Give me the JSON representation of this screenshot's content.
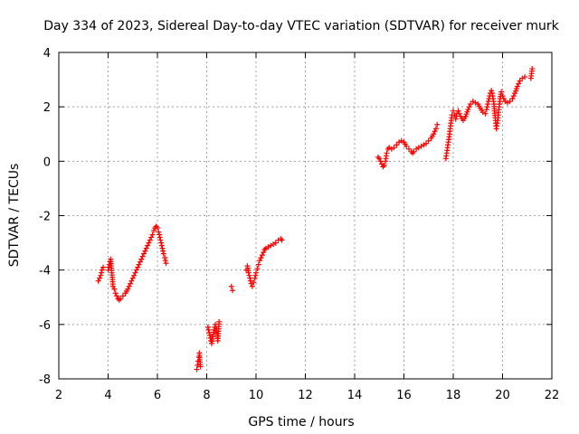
{
  "chart_data": {
    "type": "scatter",
    "title": "Day 334 of 2023, Sidereal Day-to-day VTEC variation (SDTVAR) for receiver murk",
    "xlabel": "GPS time / hours",
    "ylabel": "SDTVAR / TECUs",
    "xlim": [
      2,
      22
    ],
    "ylim": [
      -8,
      4
    ],
    "xticks": [
      2,
      4,
      6,
      8,
      10,
      12,
      14,
      16,
      18,
      20,
      22
    ],
    "yticks": [
      -8,
      -6,
      -4,
      -2,
      0,
      2,
      4
    ],
    "grid": true,
    "marker": "+",
    "color": "#ff0000",
    "series": [
      {
        "name": "SDTVAR",
        "segments": [
          [
            [
              3.6,
              -4.4
            ],
            [
              3.65,
              -4.3
            ],
            [
              3.7,
              -4.2
            ],
            [
              3.75,
              -4.0
            ],
            [
              3.8,
              -3.9
            ]
          ],
          [
            [
              4.0,
              -4.0
            ],
            [
              4.05,
              -3.8
            ],
            [
              4.1,
              -3.6
            ],
            [
              4.15,
              -4.1
            ],
            [
              4.2,
              -4.6
            ],
            [
              4.25,
              -4.7
            ],
            [
              4.3,
              -4.85
            ],
            [
              4.35,
              -4.95
            ],
            [
              4.4,
              -5.05
            ],
            [
              4.45,
              -5.1
            ],
            [
              4.5,
              -5.05
            ],
            [
              4.6,
              -4.95
            ],
            [
              4.7,
              -4.85
            ],
            [
              4.8,
              -4.7
            ],
            [
              4.9,
              -4.5
            ],
            [
              5.0,
              -4.3
            ],
            [
              5.1,
              -4.1
            ],
            [
              5.2,
              -3.9
            ],
            [
              5.3,
              -3.7
            ],
            [
              5.4,
              -3.5
            ],
            [
              5.5,
              -3.3
            ],
            [
              5.6,
              -3.1
            ],
            [
              5.7,
              -2.9
            ],
            [
              5.75,
              -2.8
            ],
            [
              5.8,
              -2.7
            ],
            [
              5.85,
              -2.55
            ],
            [
              5.9,
              -2.45
            ],
            [
              5.95,
              -2.4
            ],
            [
              6.0,
              -2.45
            ],
            [
              6.05,
              -2.6
            ],
            [
              6.1,
              -2.8
            ],
            [
              6.15,
              -3.0
            ],
            [
              6.2,
              -3.2
            ],
            [
              6.25,
              -3.4
            ],
            [
              6.3,
              -3.55
            ],
            [
              6.35,
              -3.75
            ]
          ],
          [
            [
              7.6,
              -7.65
            ],
            [
              7.62,
              -7.5
            ],
            [
              7.65,
              -7.35
            ],
            [
              7.68,
              -7.2
            ],
            [
              7.7,
              -7.05
            ],
            [
              7.72,
              -7.3
            ],
            [
              7.75,
              -7.55
            ]
          ],
          [
            [
              8.05,
              -6.1
            ],
            [
              8.1,
              -6.3
            ],
            [
              8.15,
              -6.5
            ],
            [
              8.2,
              -6.7
            ],
            [
              8.25,
              -6.45
            ],
            [
              8.3,
              -6.2
            ],
            [
              8.35,
              -6.0
            ],
            [
              8.4,
              -6.15
            ],
            [
              8.45,
              -6.6
            ],
            [
              8.5,
              -5.9
            ]
          ],
          [
            [
              9.0,
              -4.6
            ],
            [
              9.05,
              -4.75
            ]
          ],
          [
            [
              9.6,
              -4.0
            ],
            [
              9.65,
              -3.85
            ],
            [
              9.7,
              -4.1
            ],
            [
              9.75,
              -4.3
            ],
            [
              9.8,
              -4.5
            ],
            [
              9.85,
              -4.6
            ],
            [
              9.9,
              -4.45
            ],
            [
              9.95,
              -4.3
            ],
            [
              10.0,
              -4.1
            ],
            [
              10.05,
              -3.95
            ],
            [
              10.1,
              -3.8
            ],
            [
              10.15,
              -3.65
            ],
            [
              10.2,
              -3.55
            ],
            [
              10.25,
              -3.45
            ],
            [
              10.3,
              -3.35
            ],
            [
              10.35,
              -3.25
            ],
            [
              10.4,
              -3.2
            ],
            [
              10.5,
              -3.15
            ],
            [
              10.6,
              -3.1
            ],
            [
              10.7,
              -3.05
            ],
            [
              10.8,
              -3.0
            ],
            [
              10.9,
              -2.9
            ],
            [
              11.0,
              -2.85
            ],
            [
              11.05,
              -2.9
            ]
          ],
          [
            [
              14.95,
              0.15
            ],
            [
              15.0,
              0.1
            ],
            [
              15.05,
              0.0
            ],
            [
              15.1,
              -0.1
            ],
            [
              15.15,
              -0.2
            ],
            [
              15.2,
              -0.15
            ],
            [
              15.25,
              0.0
            ],
            [
              15.3,
              0.3
            ],
            [
              15.35,
              0.45
            ],
            [
              15.4,
              0.5
            ],
            [
              15.5,
              0.45
            ],
            [
              15.6,
              0.5
            ],
            [
              15.7,
              0.6
            ],
            [
              15.8,
              0.7
            ],
            [
              15.9,
              0.75
            ],
            [
              16.0,
              0.7
            ],
            [
              16.1,
              0.55
            ],
            [
              16.2,
              0.45
            ],
            [
              16.3,
              0.35
            ],
            [
              16.35,
              0.3
            ],
            [
              16.4,
              0.35
            ],
            [
              16.5,
              0.45
            ],
            [
              16.6,
              0.5
            ],
            [
              16.7,
              0.55
            ],
            [
              16.8,
              0.6
            ],
            [
              16.9,
              0.65
            ],
            [
              17.0,
              0.75
            ],
            [
              17.1,
              0.85
            ],
            [
              17.2,
              1.0
            ],
            [
              17.3,
              1.2
            ],
            [
              17.35,
              1.35
            ]
          ],
          [
            [
              17.7,
              0.1
            ],
            [
              17.75,
              0.4
            ],
            [
              17.8,
              0.7
            ],
            [
              17.85,
              1.0
            ],
            [
              17.9,
              1.4
            ],
            [
              17.95,
              1.7
            ],
            [
              18.0,
              1.85
            ],
            [
              18.05,
              1.7
            ],
            [
              18.1,
              1.55
            ],
            [
              18.15,
              1.75
            ],
            [
              18.2,
              1.85
            ],
            [
              18.3,
              1.65
            ],
            [
              18.4,
              1.5
            ],
            [
              18.5,
              1.65
            ],
            [
              18.6,
              1.9
            ],
            [
              18.7,
              2.1
            ],
            [
              18.8,
              2.2
            ],
            [
              18.9,
              2.15
            ],
            [
              19.0,
              2.1
            ],
            [
              19.1,
              1.95
            ],
            [
              19.2,
              1.8
            ],
            [
              19.3,
              1.75
            ],
            [
              19.35,
              1.9
            ],
            [
              19.4,
              2.1
            ],
            [
              19.45,
              2.3
            ],
            [
              19.5,
              2.5
            ],
            [
              19.55,
              2.6
            ],
            [
              19.6,
              2.4
            ],
            [
              19.65,
              2.1
            ],
            [
              19.7,
              1.6
            ],
            [
              19.75,
              1.2
            ],
            [
              19.8,
              1.5
            ],
            [
              19.85,
              1.9
            ],
            [
              19.9,
              2.3
            ],
            [
              19.95,
              2.55
            ],
            [
              20.0,
              2.4
            ],
            [
              20.1,
              2.2
            ],
            [
              20.2,
              2.15
            ],
            [
              20.3,
              2.2
            ],
            [
              20.4,
              2.3
            ],
            [
              20.5,
              2.5
            ],
            [
              20.6,
              2.75
            ],
            [
              20.7,
              2.95
            ],
            [
              20.8,
              3.05
            ],
            [
              20.9,
              3.1
            ]
          ],
          [
            [
              21.15,
              3.05
            ],
            [
              21.2,
              3.4
            ]
          ]
        ]
      }
    ]
  }
}
